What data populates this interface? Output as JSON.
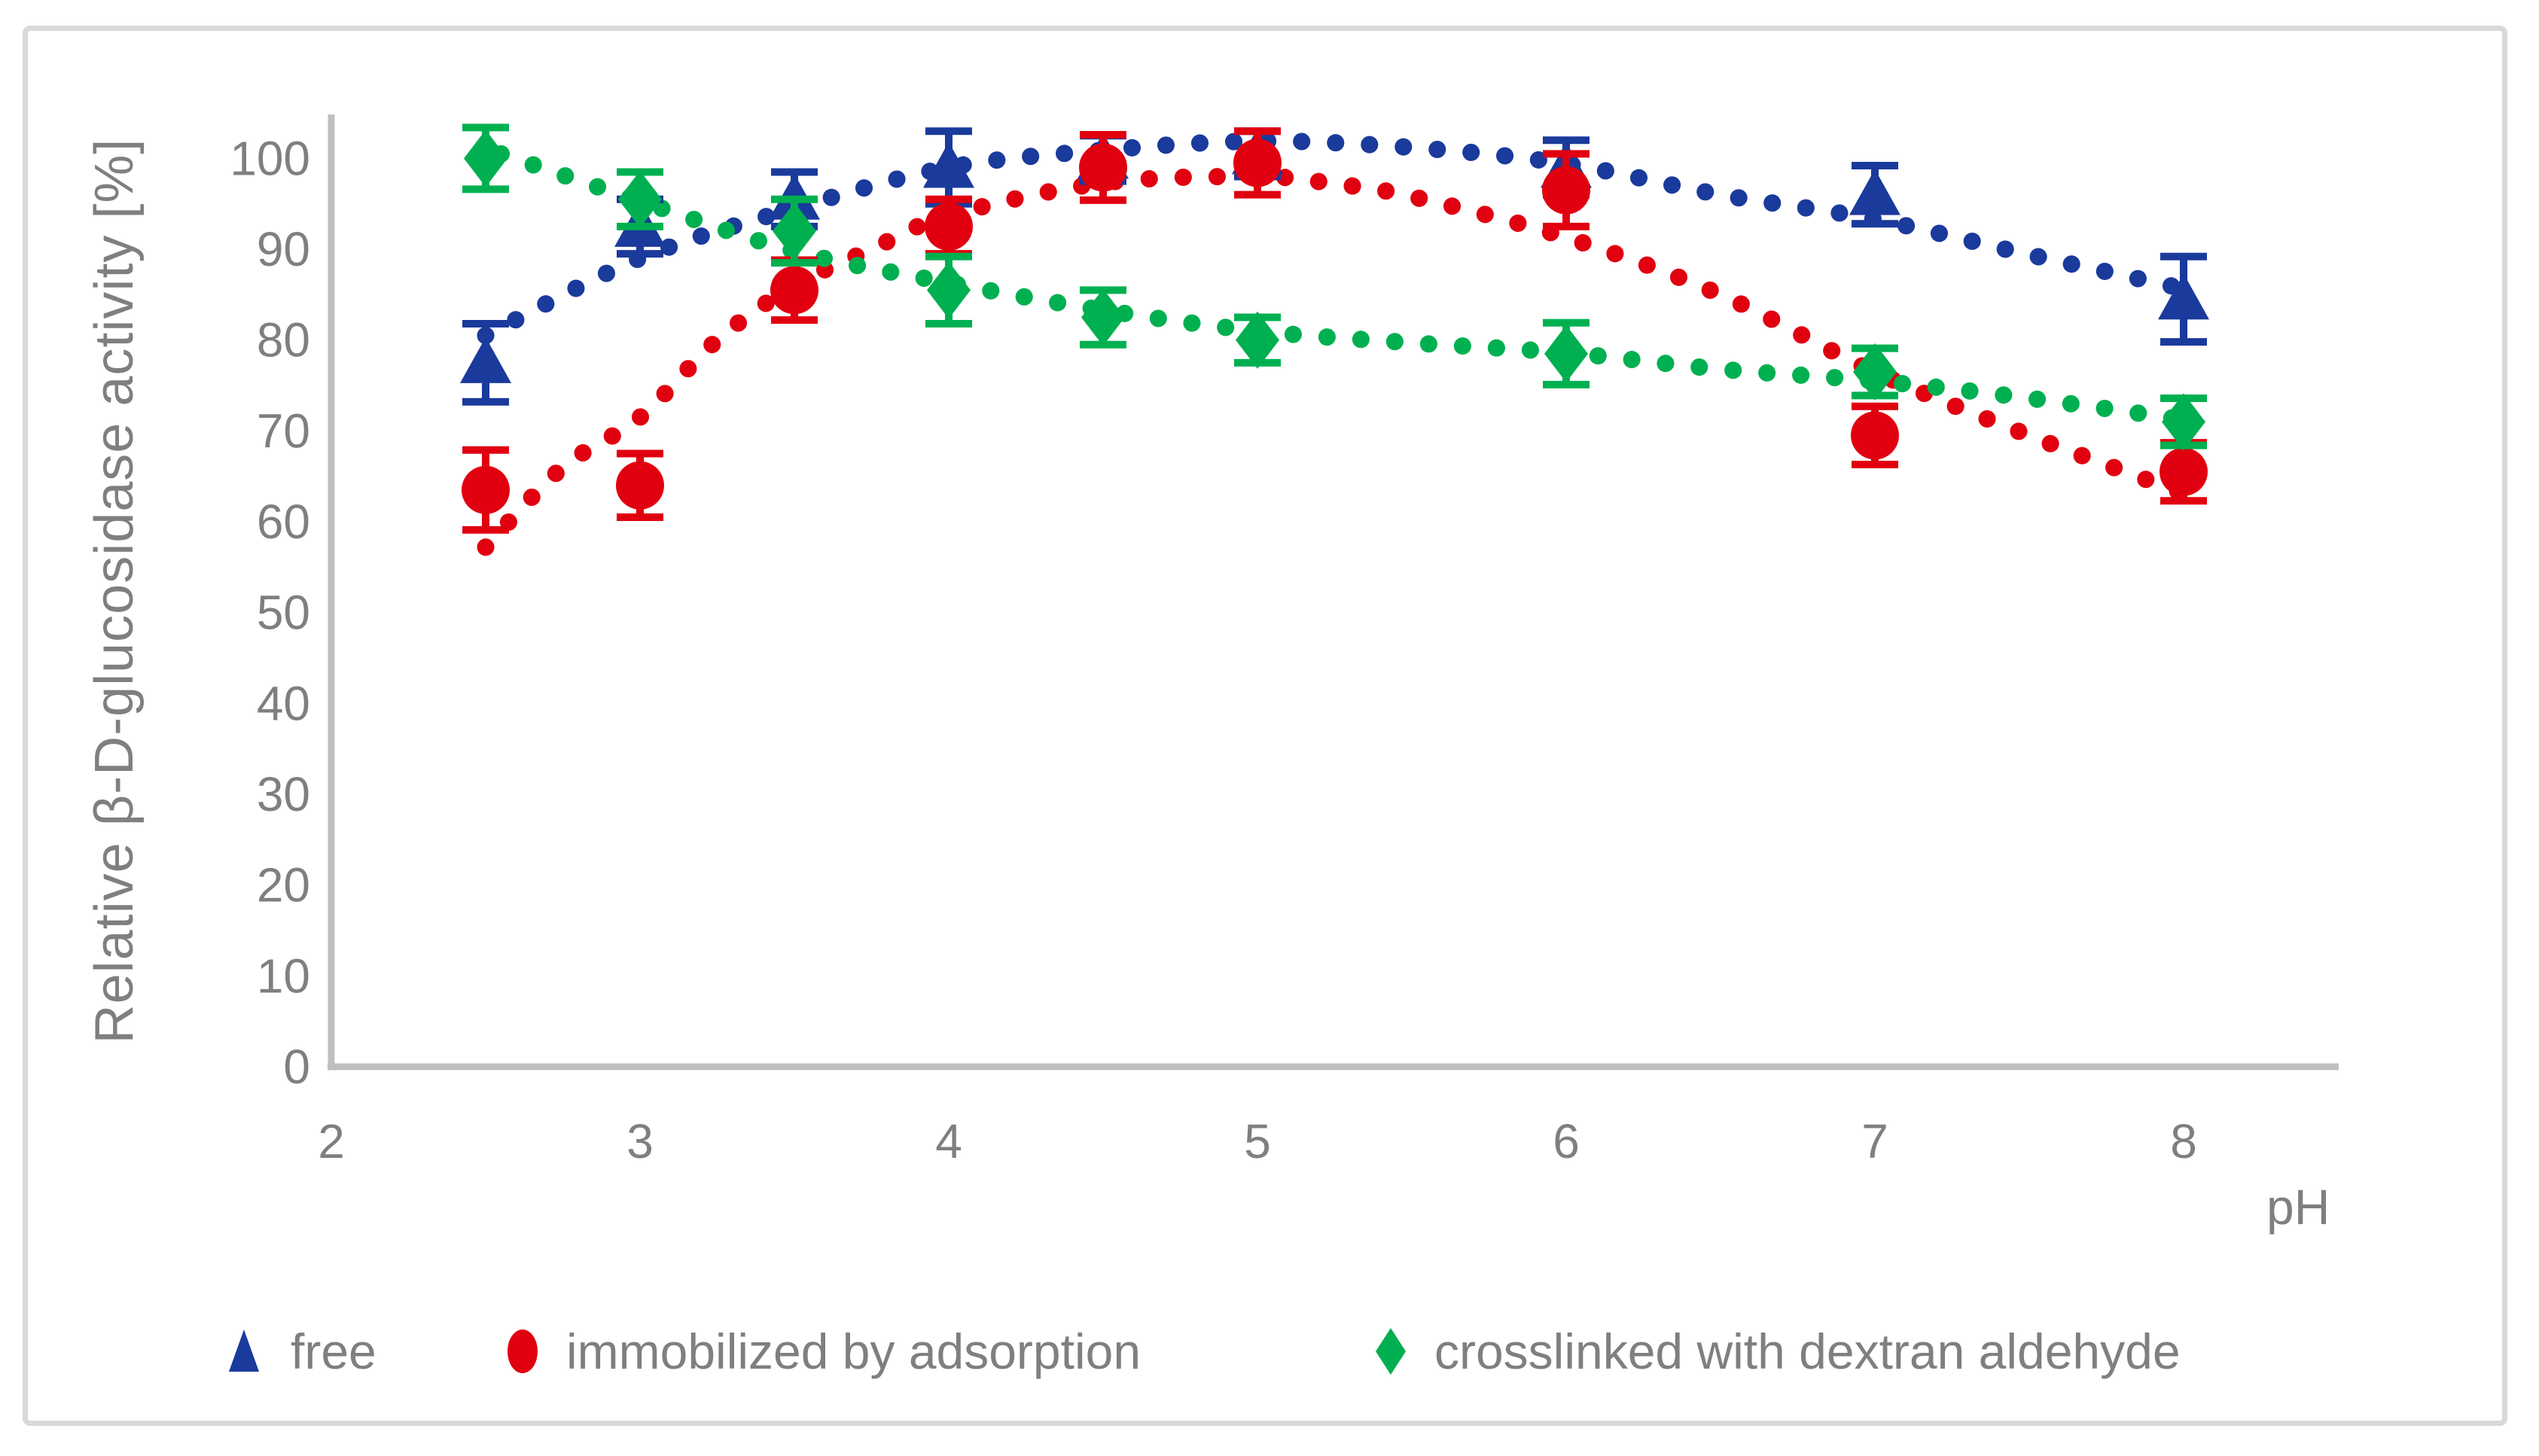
{
  "chart_data": {
    "type": "scatter",
    "title": "",
    "xlabel": "pH",
    "ylabel": "Relative β-D-glucosidase activity [%]",
    "x_ticks": [
      2,
      3,
      4,
      5,
      6,
      7,
      8
    ],
    "y_ticks": [
      0,
      10,
      20,
      30,
      40,
      50,
      60,
      70,
      80,
      90,
      100
    ],
    "xlim": [
      2,
      8.5
    ],
    "ylim": [
      0,
      105
    ],
    "grid": false,
    "legend_position": "bottom",
    "axis_color": "#bfbfbf",
    "label_color": "#7f7f7f",
    "x": [
      2.5,
      3,
      3.5,
      4,
      4.5,
      5,
      6,
      7,
      8
    ],
    "series": [
      {
        "name": "free",
        "marker": "triangle",
        "color": "#1a3a9c",
        "values": [
          77.5,
          92.5,
          95.5,
          99,
          100,
          100.5,
          99,
          96,
          84.5
        ],
        "errors": [
          4.3,
          3,
          3,
          4,
          2.5,
          2.5,
          3,
          3.2,
          4.7
        ],
        "trend": [
          [
            2.5,
            80.5
          ],
          [
            3,
            89
          ],
          [
            3.5,
            94.5
          ],
          [
            4,
            99
          ],
          [
            4.5,
            100.9
          ],
          [
            5,
            101.9
          ],
          [
            5.5,
            101.2
          ],
          [
            6,
            99.4
          ],
          [
            6.5,
            96
          ],
          [
            7,
            93.3
          ],
          [
            7.5,
            89.4
          ],
          [
            8.05,
            85.3
          ]
        ]
      },
      {
        "name": "immobilized by adsorption",
        "marker": "circle",
        "color": "#e1000f",
        "values": [
          63.5,
          64,
          85.5,
          92.5,
          99,
          99.5,
          96.5,
          69.5,
          65.5
        ],
        "errors": [
          4.4,
          3.5,
          3.3,
          3,
          3.6,
          3.5,
          4,
          3.2,
          3.2
        ],
        "trend": [
          [
            2.5,
            57.2
          ],
          [
            2.75,
            66
          ],
          [
            3,
            71.5
          ],
          [
            3.25,
            80
          ],
          [
            3.5,
            86
          ],
          [
            3.75,
            90
          ],
          [
            4,
            93.7
          ],
          [
            4.5,
            97.3
          ],
          [
            5,
            98
          ],
          [
            5.25,
            97.2
          ],
          [
            5.5,
            95.8
          ],
          [
            6,
            91.3
          ],
          [
            6.5,
            85
          ],
          [
            7,
            76.5
          ],
          [
            7.5,
            69.5
          ],
          [
            8.05,
            62.5
          ]
        ]
      },
      {
        "name": "crosslinked with dextran aldehyde",
        "marker": "diamond",
        "color": "#00b050",
        "values": [
          100,
          95.5,
          92,
          85.5,
          82.5,
          80,
          78.5,
          76.5,
          71
        ],
        "errors": [
          3.4,
          3,
          3.5,
          3.7,
          3,
          2.5,
          3.4,
          2.6,
          2.6
        ],
        "trend": [
          [
            2.55,
            100.5
          ],
          [
            3,
            95.3
          ],
          [
            3.5,
            89.8
          ],
          [
            4,
            86.3
          ],
          [
            4.5,
            83.3
          ],
          [
            5,
            81
          ],
          [
            5.5,
            79.7
          ],
          [
            6,
            78.6
          ],
          [
            6.5,
            76.8
          ],
          [
            7,
            75.5
          ],
          [
            7.5,
            73.6
          ],
          [
            8.05,
            71
          ]
        ]
      }
    ]
  }
}
